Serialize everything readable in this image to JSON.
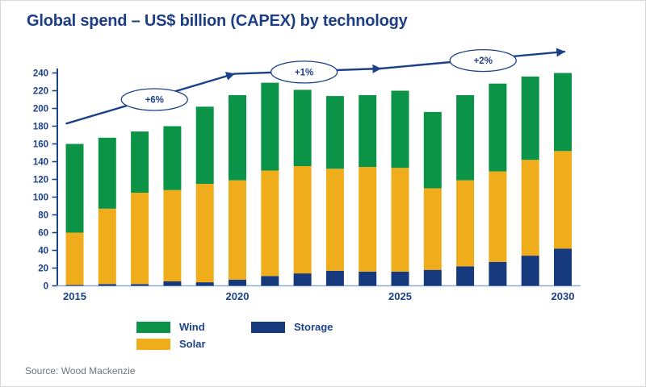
{
  "title": "Global spend – US$  billion (CAPEX) by technology",
  "source": "Source: Wood Mackenzie",
  "colors": {
    "wind": "#0b9347",
    "solar": "#f0ad1b",
    "storage": "#16397e",
    "accent": "#1d4189",
    "title_text": "#1d3e85",
    "axis_baseline": "#8ea9d3",
    "source_text": "#6b7480",
    "ellipse_fill": "#ffffff"
  },
  "legend": [
    {
      "label": "Wind",
      "key": "wind"
    },
    {
      "label": "Solar",
      "key": "solar"
    },
    {
      "label": "Storage",
      "key": "storage"
    }
  ],
  "chart_data": {
    "type": "bar",
    "stacked": true,
    "title": "Global spend – US$ billion (CAPEX) by technology",
    "xlabel": "",
    "ylabel": "US$ billion",
    "ylim": [
      0,
      240
    ],
    "y_tick_step": 20,
    "grid": false,
    "categories": [
      2015,
      2016,
      2017,
      2018,
      2019,
      2020,
      2021,
      2022,
      2023,
      2024,
      2025,
      2026,
      2027,
      2028,
      2029,
      2030
    ],
    "x_ticks_shown": [
      2015,
      2020,
      2025,
      2030
    ],
    "series": [
      {
        "name": "Storage",
        "color_key": "storage",
        "values": [
          1,
          2,
          2,
          5,
          4,
          7,
          11,
          14,
          17,
          16,
          16,
          18,
          22,
          27,
          34,
          42
        ]
      },
      {
        "name": "Solar",
        "color_key": "solar",
        "values": [
          59,
          85,
          103,
          103,
          111,
          112,
          119,
          121,
          115,
          118,
          117,
          92,
          97,
          102,
          108,
          110
        ]
      },
      {
        "name": "Wind",
        "color_key": "wind",
        "values": [
          100,
          80,
          69,
          72,
          87,
          96,
          99,
          86,
          82,
          81,
          87,
          86,
          96,
          99,
          94,
          88
        ]
      }
    ],
    "totals": [
      160,
      167,
      174,
      180,
      202,
      215,
      229,
      221,
      214,
      215,
      220,
      196,
      215,
      228,
      236,
      240
    ],
    "trend": {
      "points": [
        {
          "year": 2014.75,
          "value": 183
        },
        {
          "year": 2019.9,
          "value": 239
        },
        {
          "year": 2024.4,
          "value": 245
        },
        {
          "year": 2030.05,
          "value": 264
        }
      ],
      "annotations": [
        {
          "label": "+6%",
          "year": 2017.45,
          "value": 210
        },
        {
          "label": "+1%",
          "year": 2022.05,
          "value": 241
        },
        {
          "label": "+2%",
          "year": 2027.55,
          "value": 254
        }
      ]
    }
  }
}
